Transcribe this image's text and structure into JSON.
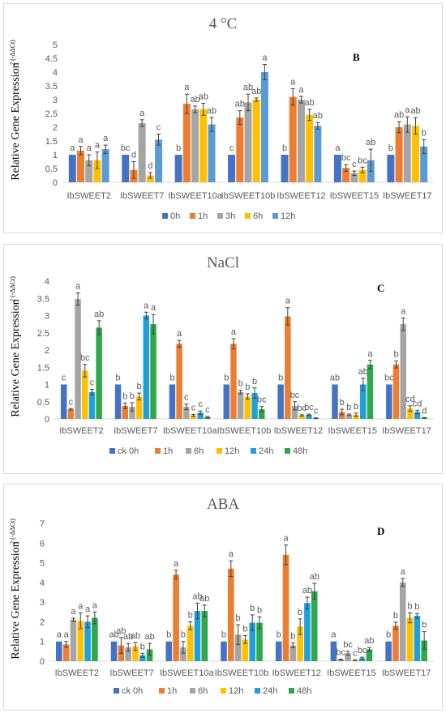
{
  "chart_data": [
    {
      "type": "bar",
      "title": "4 °C",
      "panel_label": "B",
      "ylabel": "Relative Gene Expression",
      "ylabel_sup": "2 (-ΔΔCt)",
      "ylim": [
        0,
        5
      ],
      "yticks": [
        "0",
        "0.5",
        "1",
        "1.5",
        "2",
        "2.5",
        "3",
        "3.5",
        "4",
        "4.5",
        "5"
      ],
      "categories": [
        "IbSWEET2",
        "IbSWEET7",
        "IbSWEET10a",
        "IbSWEET10b",
        "IbSWEET12",
        "IbSWEET15",
        "IbSWEET17"
      ],
      "legend_position": "bottom",
      "series": [
        {
          "name": "0h",
          "color": "#4472C4",
          "values": [
            1,
            1,
            1,
            1,
            1,
            1,
            1
          ],
          "errors": [
            0,
            0,
            0,
            0,
            0,
            0,
            0
          ],
          "labels": [
            "a",
            "bc",
            "b",
            "c",
            "b",
            "a",
            "b"
          ]
        },
        {
          "name": "1h",
          "color": "#ED7D31",
          "values": [
            1.15,
            0.45,
            2.85,
            2.35,
            3.1,
            0.52,
            2.0
          ],
          "errors": [
            0.15,
            0.3,
            0.35,
            0.25,
            0.3,
            0.12,
            0.2
          ],
          "labels": [
            "a",
            "d",
            "a",
            "ab",
            "a",
            "bc",
            "ab"
          ]
        },
        {
          "name": "3h",
          "color": "#A5A5A5",
          "values": [
            0.8,
            2.15,
            2.65,
            2.9,
            3.0,
            0.33,
            2.1
          ],
          "errors": [
            0.2,
            0.12,
            0.12,
            0.3,
            0.12,
            0.08,
            0.28
          ],
          "labels": [
            "a",
            "a",
            "ab",
            "ab",
            "a",
            "c",
            "a"
          ]
        },
        {
          "name": "6h",
          "color": "#FFC000",
          "values": [
            0.8,
            0.25,
            2.65,
            3.0,
            2.45,
            0.45,
            2.05
          ],
          "errors": [
            0.3,
            0.1,
            0.22,
            0.06,
            0.2,
            0.1,
            0.3
          ],
          "labels": [
            "a",
            "d",
            "ab",
            "ab",
            "ab",
            "bc",
            "ab"
          ]
        },
        {
          "name": "12h",
          "color": "#5B9BD5",
          "values": [
            1.2,
            1.55,
            2.1,
            4.0,
            2.05,
            0.8,
            1.3
          ],
          "errors": [
            0.15,
            0.2,
            0.25,
            0.28,
            0.12,
            0.4,
            0.25
          ],
          "labels": [
            "a",
            "c",
            "ab",
            "a",
            "ab",
            "ab",
            "b"
          ]
        }
      ]
    },
    {
      "type": "bar",
      "title": "NaCl",
      "panel_label": "C",
      "ylabel": "Relative Gene Expression",
      "ylabel_sup": "2 (-ΔΔCt)",
      "ylim": [
        0,
        4
      ],
      "yticks": [
        "0",
        "0.5",
        "1",
        "1.5",
        "2",
        "2.5",
        "3",
        "3.5",
        "4"
      ],
      "categories": [
        "IbSWEET2",
        "IbSWEET7",
        "IbSWEET10a",
        "IbSWEET10b",
        "IbSWEET12",
        "IbSWEET15",
        "IbSWEET17"
      ],
      "legend_position": "bottom",
      "series": [
        {
          "name": "ck 0h",
          "color": "#4472C4",
          "values": [
            1,
            1,
            1,
            1,
            1,
            1,
            1
          ],
          "errors": [
            0,
            0,
            0,
            0,
            0,
            0,
            0
          ],
          "labels": [
            "c",
            "b",
            "b",
            "b",
            "b",
            "ab",
            "bc"
          ]
        },
        {
          "name": "1h",
          "color": "#ED7D31",
          "values": [
            0.28,
            0.38,
            2.18,
            2.18,
            2.98,
            0.2,
            1.58
          ],
          "errors": [
            0.02,
            0.08,
            0.1,
            0.15,
            0.25,
            0.08,
            0.1
          ],
          "labels": [
            "c",
            "b",
            "a",
            "a",
            "a",
            "b",
            "b"
          ]
        },
        {
          "name": "6h",
          "color": "#A5A5A5",
          "values": [
            3.48,
            0.35,
            0.35,
            0.78,
            0.38,
            0.12,
            2.75
          ],
          "errors": [
            0.18,
            0.12,
            0.08,
            0.05,
            0.12,
            0.02,
            0.18
          ],
          "labels": [
            "a",
            "b",
            "c",
            "b",
            "bc",
            "b",
            "a"
          ]
        },
        {
          "name": "12h",
          "color": "#FFC000",
          "values": [
            1.4,
            0.65,
            0.1,
            0.65,
            0.1,
            0.12,
            0.3
          ],
          "errors": [
            0.18,
            0.1,
            0.03,
            0.08,
            0.02,
            0.05,
            0.08
          ],
          "labels": [
            "bc",
            "b",
            "c",
            "b",
            "bc",
            "b",
            "cd"
          ]
        },
        {
          "name": "24h",
          "color": "#1FA0DB",
          "values": [
            0.78,
            3.0,
            0.18,
            0.75,
            0.12,
            1.0,
            0.2
          ],
          "errors": [
            0.08,
            0.1,
            0.05,
            0.15,
            0.02,
            0.18,
            0.05
          ],
          "labels": [
            "c",
            "a",
            "c",
            "b",
            "bc",
            "ab",
            "cd"
          ]
        },
        {
          "name": "48h",
          "color": "#2DA84A",
          "values": [
            2.65,
            2.75,
            0.05,
            0.28,
            0.02,
            1.58,
            0.03
          ],
          "errors": [
            0.2,
            0.28,
            0.02,
            0.08,
            0.01,
            0.12,
            0.01
          ],
          "labels": [
            "ab",
            "a",
            "c",
            "bc",
            "c",
            "a",
            "d"
          ]
        }
      ]
    },
    {
      "type": "bar",
      "title": "ABA",
      "panel_label": "D",
      "ylabel": "Relative Gene Expression",
      "ylabel_sup": "2 (-ΔΔCt)",
      "ylim": [
        0,
        7
      ],
      "yticks": [
        "0",
        "1",
        "2",
        "3",
        "4",
        "5",
        "6",
        "7"
      ],
      "categories": [
        "IbSWEET2",
        "IbSWEET7",
        "IbSWEET10a",
        "IbSWEET10b",
        "IbSWEET12",
        "IbSWEET15",
        "IbSWEET17"
      ],
      "legend_position": "bottom",
      "series": [
        {
          "name": "ck 0h",
          "color": "#4472C4",
          "values": [
            1,
            1,
            1,
            1,
            1,
            1,
            1
          ],
          "errors": [
            0,
            0,
            0,
            0,
            0,
            0,
            0
          ],
          "labels": [
            "a",
            "ab",
            "b",
            "b",
            "b",
            "a",
            "b"
          ]
        },
        {
          "name": "1h",
          "color": "#ED7D31",
          "values": [
            0.85,
            0.8,
            4.4,
            4.7,
            5.4,
            0.08,
            1.8
          ],
          "errors": [
            0.15,
            0.4,
            0.22,
            0.4,
            0.5,
            0.02,
            0.18
          ],
          "labels": [
            "a",
            "ab",
            "a",
            "a",
            "a",
            "bc",
            "b"
          ]
        },
        {
          "name": "6h",
          "color": "#A5A5A5",
          "values": [
            2.1,
            0.7,
            0.7,
            1.35,
            0.8,
            0.4,
            4.0
          ],
          "errors": [
            0.08,
            0.2,
            0.3,
            0.5,
            0.12,
            0.1,
            0.2
          ],
          "labels": [
            "a",
            "ab",
            "b",
            "b",
            "b",
            "bc",
            "a"
          ]
        },
        {
          "name": "12h",
          "color": "#FFC000",
          "values": [
            2.05,
            0.75,
            1.8,
            1.1,
            1.75,
            0.05,
            2.2
          ],
          "errors": [
            0.4,
            0.2,
            0.2,
            0.2,
            0.4,
            0.02,
            0.25
          ],
          "labels": [
            "a",
            "ab",
            "b",
            "b",
            "b",
            "c",
            "b"
          ]
        },
        {
          "name": "24h",
          "color": "#1FA0DB",
          "values": [
            2.0,
            0.3,
            2.55,
            1.95,
            2.95,
            0.15,
            2.3
          ],
          "errors": [
            0.3,
            0.1,
            0.4,
            0.4,
            0.3,
            0.05,
            0.12
          ],
          "labels": [
            "a",
            "b",
            "ab",
            "b",
            "ab",
            "bc",
            "b"
          ]
        },
        {
          "name": "48h",
          "color": "#2DA84A",
          "values": [
            2.2,
            0.6,
            2.55,
            1.95,
            3.55,
            0.6,
            1.05
          ],
          "errors": [
            0.3,
            0.3,
            0.3,
            0.3,
            0.4,
            0.1,
            0.45
          ],
          "labels": [
            "a",
            "ab",
            "ab",
            "b",
            "ab",
            "ab",
            "b"
          ]
        }
      ]
    }
  ]
}
